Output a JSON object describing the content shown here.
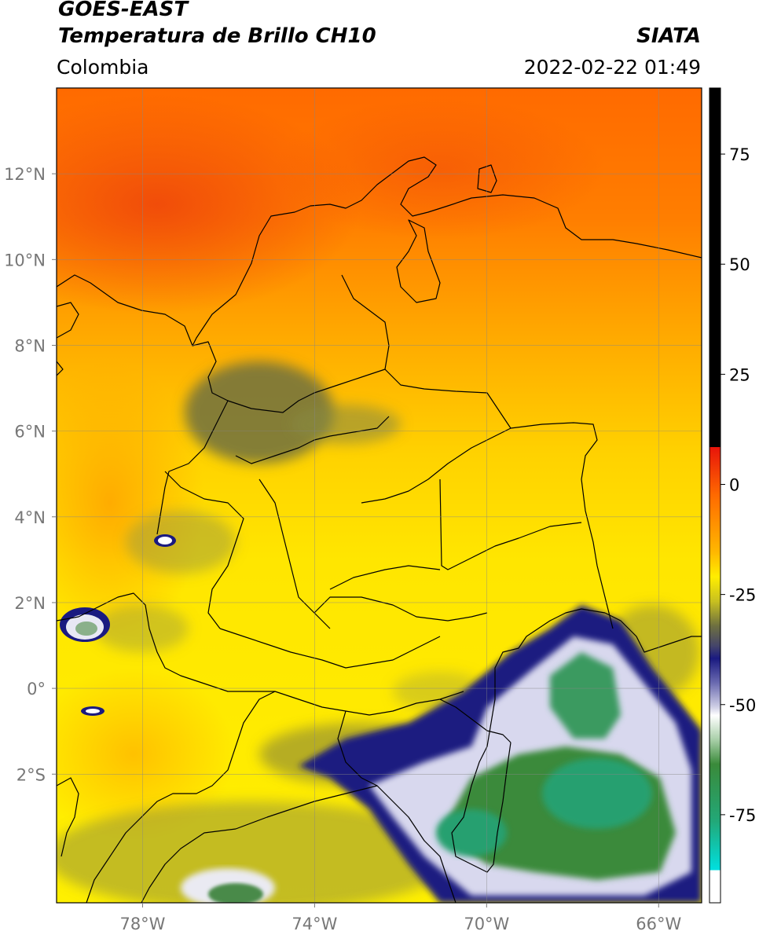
{
  "header": {
    "satellite": "GOES-EAST",
    "product": "Temperatura de Brillo CH10",
    "region": "Colombia",
    "agency": "SIATA",
    "timestamp": "2022-02-22 01:49"
  },
  "map": {
    "lon_range": [
      -80,
      -65
    ],
    "lat_range": [
      -5,
      14
    ],
    "lat_ticks": [
      {
        "value": 12,
        "label": "12°N"
      },
      {
        "value": 10,
        "label": "10°N"
      },
      {
        "value": 8,
        "label": "8°N"
      },
      {
        "value": 6,
        "label": "6°N"
      },
      {
        "value": 4,
        "label": "4°N"
      },
      {
        "value": 2,
        "label": "2°N"
      },
      {
        "value": 0,
        "label": "0°"
      },
      {
        "value": -2,
        "label": "2°S"
      }
    ],
    "lon_ticks": [
      {
        "value": -78,
        "label": "78°W"
      },
      {
        "value": -74,
        "label": "74°W"
      },
      {
        "value": -70,
        "label": "70°W"
      },
      {
        "value": -66,
        "label": "66°W"
      }
    ]
  },
  "colorbar": {
    "range": [
      -95,
      90
    ],
    "ticks": [
      {
        "value": 75,
        "label": "75"
      },
      {
        "value": 50,
        "label": "50"
      },
      {
        "value": 25,
        "label": "25"
      },
      {
        "value": 0,
        "label": "0"
      },
      {
        "value": -25,
        "label": "-25"
      },
      {
        "value": -50,
        "label": "-50"
      },
      {
        "value": -75,
        "label": "-75"
      }
    ],
    "colors": {
      "warm_black": "#000000",
      "red": "#e8140a",
      "orange": "#ff9000",
      "yellow": "#ffee00",
      "olive": "#6e7040",
      "navy": "#1a1a80",
      "white": "#ffffff",
      "green": "#3a8a3a",
      "cyan": "#00e0e0"
    }
  }
}
